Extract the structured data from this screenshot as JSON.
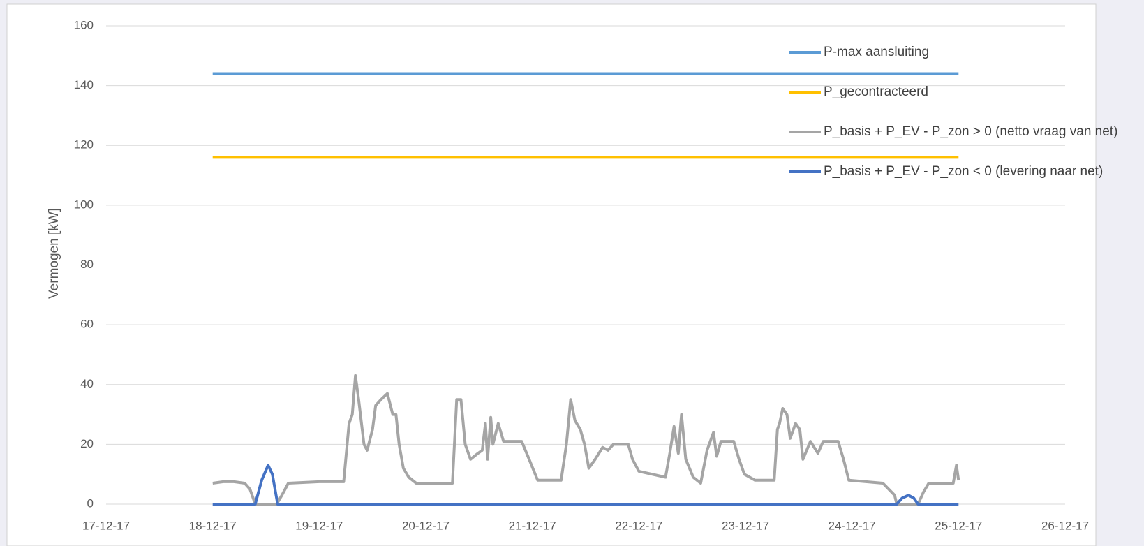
{
  "chart_data": {
    "type": "line",
    "y_label": "Vermogen [kW]",
    "xlim": [
      0,
      9
    ],
    "xticks": [
      {
        "value": 0,
        "label": "17-12-17"
      },
      {
        "value": 1,
        "label": "18-12-17"
      },
      {
        "value": 2,
        "label": "19-12-17"
      },
      {
        "value": 3,
        "label": "20-12-17"
      },
      {
        "value": 4,
        "label": "21-12-17"
      },
      {
        "value": 5,
        "label": "22-12-17"
      },
      {
        "value": 6,
        "label": "23-12-17"
      },
      {
        "value": 7,
        "label": "24-12-17"
      },
      {
        "value": 8,
        "label": "25-12-17"
      },
      {
        "value": 9,
        "label": "26-12-17"
      }
    ],
    "ylim": [
      0,
      160
    ],
    "yticks": [
      0,
      20,
      40,
      60,
      80,
      100,
      120,
      140,
      160
    ],
    "grid": true,
    "legend": "top-right",
    "series": [
      {
        "name": "P-max aansluiting",
        "color": "#5b9bd5",
        "x": [
          1,
          8
        ],
        "values": [
          144,
          144
        ]
      },
      {
        "name": "P_gecontracteerd",
        "color": "#ffc000",
        "x": [
          1,
          8
        ],
        "values": [
          116,
          116
        ]
      },
      {
        "name": "P_basis + P_EV - P_zon > 0 (netto vraag van net)",
        "color": "#a5a5a5",
        "x": [
          1.0,
          1.1,
          1.2,
          1.3,
          1.35,
          1.4,
          1.6,
          1.65,
          1.71,
          2.0,
          2.23,
          2.28,
          2.31,
          2.34,
          2.37,
          2.42,
          2.45,
          2.5,
          2.53,
          2.58,
          2.64,
          2.69,
          2.72,
          2.75,
          2.79,
          2.84,
          2.91,
          3.25,
          3.29,
          3.33,
          3.37,
          3.42,
          3.49,
          3.53,
          3.56,
          3.58,
          3.61,
          3.63,
          3.68,
          3.73,
          3.9,
          3.97,
          4.05,
          4.27,
          4.32,
          4.36,
          4.4,
          4.45,
          4.49,
          4.53,
          4.59,
          4.66,
          4.71,
          4.76,
          4.9,
          4.94,
          5.0,
          5.25,
          5.29,
          5.33,
          5.37,
          5.4,
          5.44,
          5.51,
          5.58,
          5.64,
          5.7,
          5.73,
          5.77,
          5.89,
          5.94,
          5.99,
          6.09,
          6.27,
          6.3,
          6.32,
          6.35,
          6.39,
          6.42,
          6.47,
          6.51,
          6.54,
          6.61,
          6.68,
          6.73,
          6.87,
          6.92,
          6.97,
          7.29,
          7.4,
          7.42,
          7.62,
          7.67,
          7.72,
          7.95,
          7.98,
          8.0
        ],
        "values": [
          7,
          7.5,
          7.5,
          7,
          5,
          0,
          0,
          3,
          7,
          7.5,
          7.5,
          27,
          30,
          43,
          35,
          20,
          18,
          25,
          33,
          35,
          37,
          30,
          30,
          20,
          12,
          9,
          7,
          7,
          35,
          35,
          20,
          15,
          17,
          18,
          27,
          15,
          29,
          20,
          27,
          21,
          21,
          15,
          8,
          8,
          20,
          35,
          28,
          25,
          20,
          12,
          15,
          19,
          18,
          20,
          20,
          15,
          11,
          9,
          17,
          26,
          17,
          30,
          15,
          9,
          7,
          18,
          24,
          16,
          21,
          21,
          15,
          10,
          8,
          8,
          25,
          27,
          32,
          30,
          22,
          27,
          25,
          15,
          21,
          17,
          21,
          21,
          15,
          8,
          7,
          3,
          0,
          0,
          4,
          7,
          7,
          13,
          8
        ]
      },
      {
        "name": "P_basis + P_EV - P_zon < 0 (levering naar net)",
        "color": "#4472c4",
        "x": [
          1.0,
          1.4,
          1.46,
          1.52,
          1.56,
          1.61,
          7.42,
          7.47,
          7.53,
          7.58,
          7.62,
          8.0
        ],
        "values": [
          0,
          0,
          8,
          13,
          10,
          0,
          0,
          2,
          3,
          2,
          0,
          0
        ]
      }
    ]
  }
}
